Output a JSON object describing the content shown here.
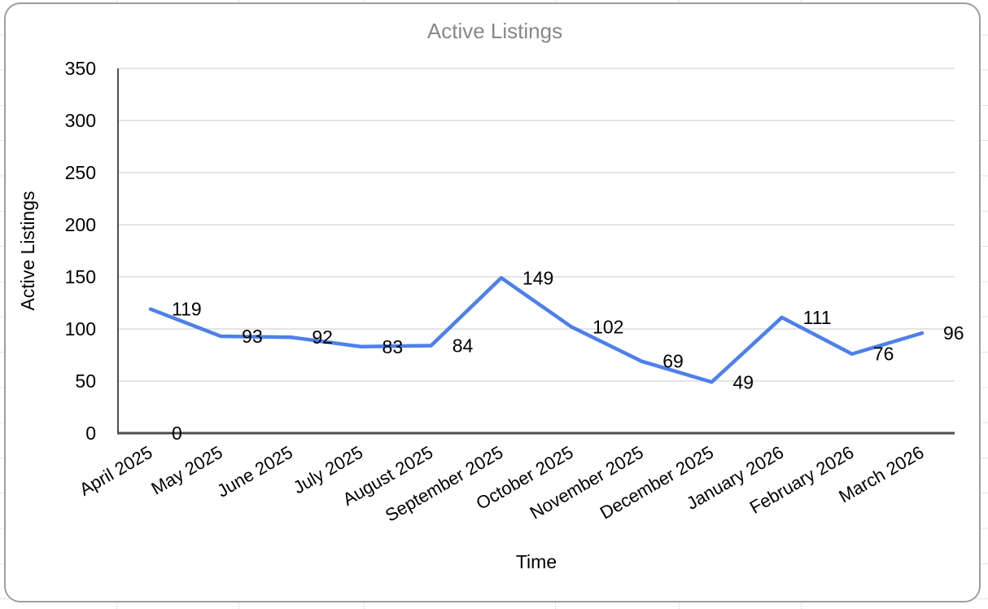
{
  "chart_data": {
    "type": "line",
    "title": "Active Listings",
    "xlabel": "Time",
    "ylabel": "Active Listings",
    "categories": [
      "April 2025",
      "May 2025",
      "June 2025",
      "July 2025",
      "August 2025",
      "September 2025",
      "October 2025",
      "November 2025",
      "December 2025",
      "January 2026",
      "February 2026",
      "March 2026"
    ],
    "series": [
      {
        "name": "Active Listings",
        "values": [
          119,
          93,
          92,
          83,
          84,
          149,
          102,
          69,
          49,
          111,
          76,
          96
        ]
      }
    ],
    "annotations": [
      {
        "category": "April 2025",
        "value": 0,
        "label": "0"
      }
    ],
    "ylim": [
      0,
      350
    ],
    "yticks": [
      0,
      50,
      100,
      150,
      200,
      250,
      300,
      350
    ],
    "grid": "horizontal",
    "legend": "none",
    "data_labels_visible": true,
    "colors": {
      "series": "#4e80ea",
      "title": "#878787",
      "axis": "#4d4d4d",
      "gridline": "#dbdbdb",
      "label": "#000000"
    }
  }
}
